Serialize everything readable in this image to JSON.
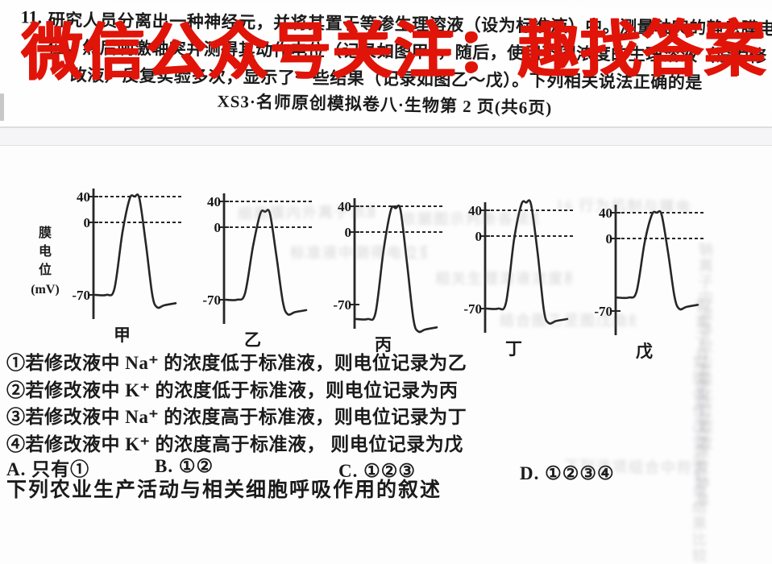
{
  "watermark": {
    "text": "微信公众号关注：趣找答案",
    "color": "#e01408"
  },
  "question": {
    "number": "11.",
    "line1": "研究人员分离出一种神经元，并将其置于等渗生理溶液（设为标准液）中。测量轴突的静息膜电",
    "line2": "位。然后刺激轴突并测得其动作电位（记录如图甲），随后，使用不同浓度的生理溶液（设为修",
    "line3": "改液）反复实验多次，显示了一些结果（记录如图乙～戊）。下列相关说法正确的是"
  },
  "page_footer": "XS3·名师原创模拟卷八·生物第 2 页(共6页)",
  "chart_data": {
    "type": "line",
    "ylabel": "膜\n电\n位\n(mV)",
    "yticks": [
      40,
      0,
      -70
    ],
    "dashed_gridlines": [
      40,
      0
    ],
    "ink_color": "#262626",
    "charts": [
      {
        "label": "甲",
        "rest": -70,
        "peak": 40,
        "undershoot": -82,
        "end": -78
      },
      {
        "label": "乙",
        "rest": -70,
        "peak": 24,
        "undershoot": -84,
        "end": -80
      },
      {
        "label": "丙",
        "rest": -84,
        "peak": 37,
        "undershoot": -96,
        "end": -92
      },
      {
        "label": "丁",
        "rest": -70,
        "peak": 52,
        "undershoot": -84,
        "end": -80
      },
      {
        "label": "戊",
        "rest": -57,
        "peak": 40,
        "undershoot": -68,
        "end": -64
      }
    ]
  },
  "statements": [
    "①若修改液中 Na⁺ 的浓度低于标准液，则电位记录为乙",
    "②若修改液中 K⁺ 的浓度低于标准液，则电位记录为丙",
    "③若修改液中 Na⁺ 的浓度高于标准液，则电位记录为丁",
    "④若修改液中 K⁺ 的浓度高于标准液， 则电位记录为戊"
  ],
  "options": [
    "A. 只有①",
    "B. ①②",
    "C. ①②③",
    "D. ①②③④"
  ],
  "next_question_clipped": "下列农业生产活动与相关细胞呼吸作用的叙述",
  "ghost_lines": [
    "细胞膜内外离子浓度变化记录示意",
    "标准液中测得电位变化的相关说明",
    "依据图示判断各项叙述是否正确的",
    "16 行为机制与膜电位变化的关系",
    "钠离子内流导致去极化过程发生时",
    "钾离子外流使膜电位恢复静息状态",
    "实验条件改变后记录结果比较分析",
    "相关生理溶液浓度梯度影响的说明",
    "结合图乙至图戊曲线进行对比判断",
    "下列选项组合中符合题意的是哪项"
  ]
}
